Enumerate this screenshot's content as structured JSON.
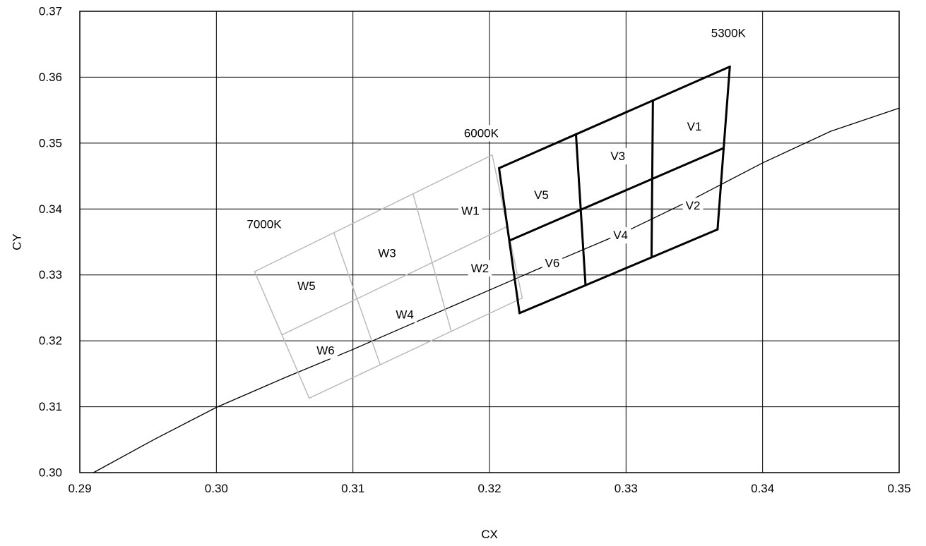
{
  "chart_data": {
    "type": "line",
    "xlabel": "CX",
    "ylabel": "CY",
    "xlim": [
      0.29,
      0.35
    ],
    "ylim": [
      0.3,
      0.37
    ],
    "xticks": [
      0.29,
      0.3,
      0.31,
      0.32,
      0.33,
      0.34,
      0.35
    ],
    "xtick_labels": [
      "0.29",
      "0.30",
      "0.31",
      "0.32",
      "0.33",
      "0.34",
      "0.35"
    ],
    "yticks": [
      0.3,
      0.31,
      0.32,
      0.33,
      0.34,
      0.35,
      0.36,
      0.37
    ],
    "ytick_labels": [
      "0.30",
      "0.31",
      "0.32",
      "0.33",
      "0.34",
      "0.35",
      "0.36",
      "0.37"
    ],
    "grid": true,
    "blackbody_locus": {
      "color": "#000000",
      "x": [
        0.291,
        0.2955,
        0.3,
        0.305,
        0.31,
        0.315,
        0.32,
        0.325,
        0.33,
        0.335,
        0.34,
        0.345,
        0.35
      ],
      "y": [
        0.3,
        0.3051,
        0.3099,
        0.3144,
        0.3187,
        0.3232,
        0.3277,
        0.3322,
        0.3366,
        0.3416,
        0.347,
        0.3518,
        0.3553
      ]
    },
    "bin_regions": [
      {
        "group": "W",
        "color": "#bbbbbb",
        "stroke": "thin",
        "corner_points": {
          "top_left": [
            0.3028,
            0.3305
          ],
          "top_right": [
            0.3202,
            0.3482
          ],
          "bottom_left": [
            0.3068,
            0.3113
          ],
          "bottom_right": [
            0.3224,
            0.3265
          ]
        },
        "bins": [
          {
            "label": "W1",
            "x": 0.3186,
            "y": 0.3397
          },
          {
            "label": "W2",
            "x": 0.3193,
            "y": 0.331
          },
          {
            "label": "W3",
            "x": 0.3125,
            "y": 0.3333
          },
          {
            "label": "W4",
            "x": 0.3138,
            "y": 0.324
          },
          {
            "label": "W5",
            "x": 0.3066,
            "y": 0.3283
          },
          {
            "label": "W6",
            "x": 0.308,
            "y": 0.3185
          }
        ]
      },
      {
        "group": "V",
        "color": "#000000",
        "stroke": "thick",
        "corner_points": {
          "top_left": [
            0.3207,
            0.3462
          ],
          "top_right": [
            0.3376,
            0.3616
          ],
          "bottom_left": [
            0.3222,
            0.3242
          ],
          "bottom_right": [
            0.3367,
            0.3369
          ]
        },
        "bins": [
          {
            "label": "V1",
            "x": 0.335,
            "y": 0.3525
          },
          {
            "label": "V2",
            "x": 0.3349,
            "y": 0.3405
          },
          {
            "label": "V3",
            "x": 0.3294,
            "y": 0.348
          },
          {
            "label": "V4",
            "x": 0.3296,
            "y": 0.336
          },
          {
            "label": "V5",
            "x": 0.3238,
            "y": 0.3421
          },
          {
            "label": "V6",
            "x": 0.3246,
            "y": 0.3318
          }
        ]
      }
    ],
    "cct_labels": [
      {
        "label": "5300K",
        "x": 0.3375,
        "y": 0.3667
      },
      {
        "label": "6000K",
        "x": 0.3194,
        "y": 0.3515
      },
      {
        "label": "7000K",
        "x": 0.3035,
        "y": 0.3377
      }
    ]
  }
}
